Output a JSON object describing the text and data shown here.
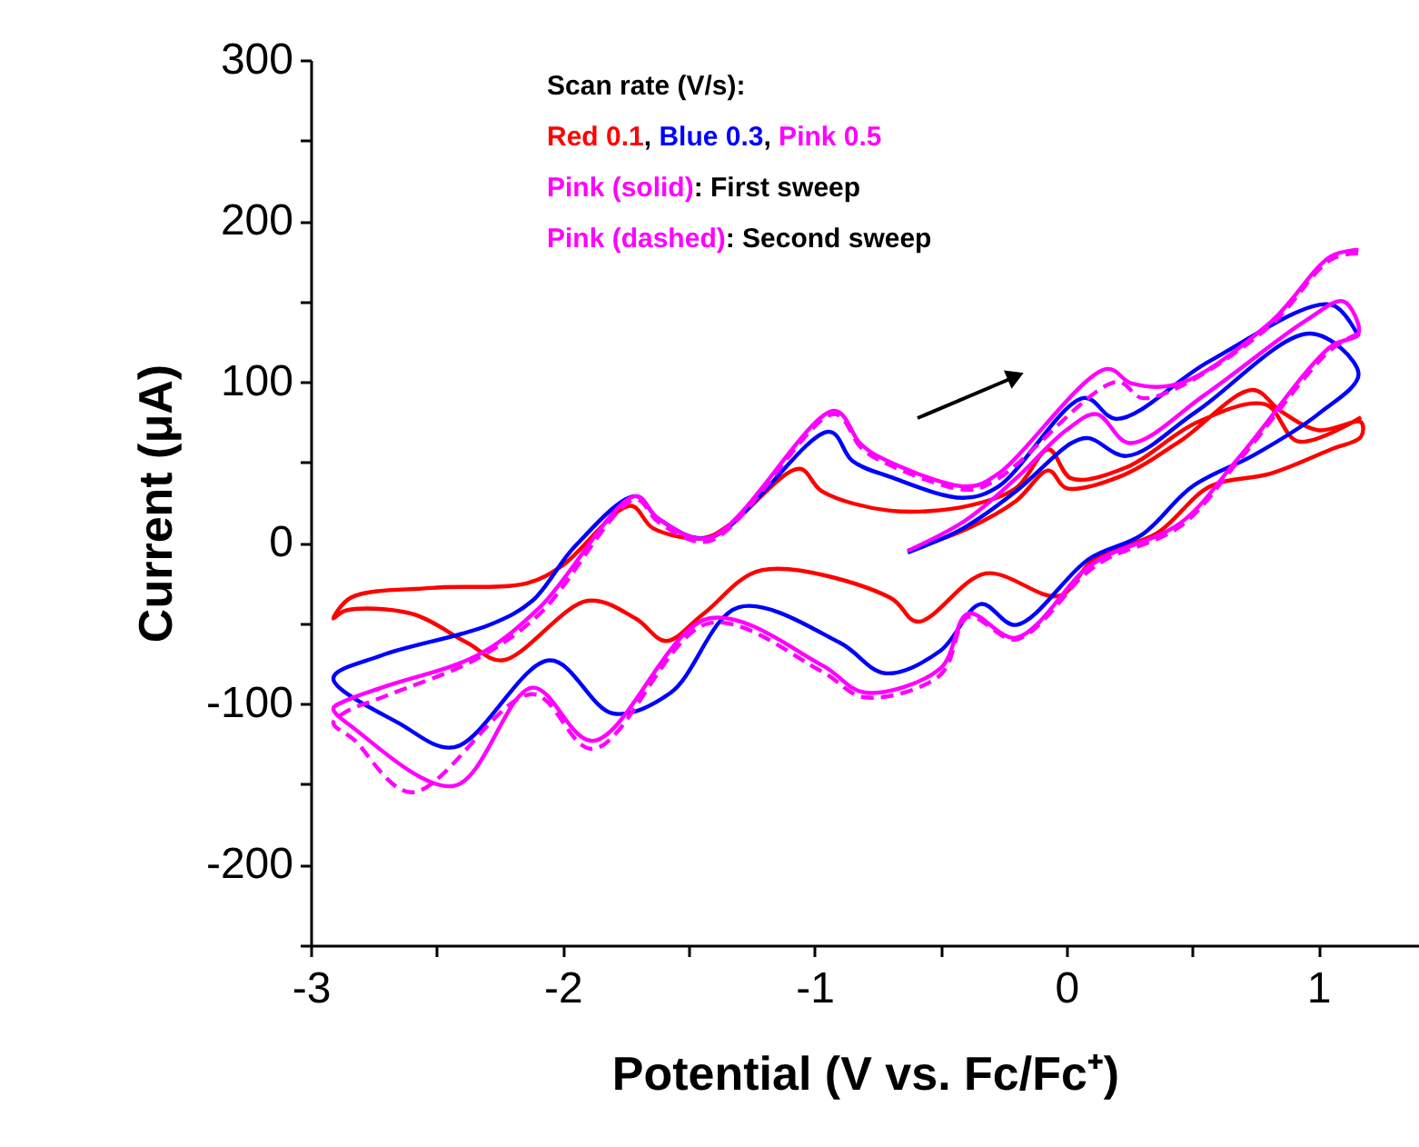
{
  "chart_data": {
    "type": "line",
    "xlabel": "Potential (V vs. Fc/Fc⁺)",
    "ylabel": "Current (μA)",
    "xlim": [
      -3,
      1.4
    ],
    "xticks": [
      -3,
      {
        "value": -2.5,
        "label": null
      },
      -2,
      {
        "value": -1.5,
        "label": null
      },
      -1,
      {
        "value": -0.5,
        "label": null
      },
      0,
      {
        "value": 0.5,
        "label": null
      },
      1
    ],
    "ylim": [
      -250,
      300
    ],
    "yticks": [
      {
        "value": -250,
        "label": null
      },
      -200,
      {
        "value": -150,
        "label": null
      },
      -100,
      {
        "value": -50,
        "label": null
      },
      0,
      {
        "value": 50,
        "label": null
      },
      100,
      {
        "value": 150,
        "label": null
      },
      200,
      {
        "value": 250,
        "label": null
      },
      300
    ],
    "grid": false,
    "line_style": "solid",
    "marker": "none",
    "annotations": [
      "Scan rate (V/s):",
      "Red 0.1, Blue 0.3, Pink 0.5",
      "Pink (solid): First sweep",
      "Pink (dashed): Second sweep"
    ],
    "series": [
      {
        "color": "#ff0000",
        "x": [
          -0.63,
          -0.39,
          -0.2,
          -0.07,
          0.0,
          0.21,
          0.45,
          0.74,
          0.85,
          1.0,
          1.17,
          1.17,
          1.05,
          0.81,
          0.57,
          0.36,
          0.11,
          -0.03,
          -0.32,
          -0.59,
          -0.7,
          -1.21,
          -1.44,
          -1.59,
          -1.71,
          -1.9,
          -2.24,
          -2.38,
          -2.6,
          -2.86,
          -2.91,
          -2.84,
          -2.52,
          -2.14,
          -2.0,
          -1.73,
          -1.64,
          -1.44,
          -1.33,
          -1.06,
          -0.97,
          -0.7,
          -0.39,
          -0.2,
          -0.07,
          0.02,
          0.24,
          0.52,
          0.79,
          0.92,
          1.17
        ],
        "values": [
          -5,
          9,
          26,
          45,
          34,
          41,
          63,
          95,
          82,
          70,
          75,
          66,
          58,
          43,
          35,
          6,
          -10,
          -33,
          -19,
          -49,
          -34,
          -17,
          -44,
          -61,
          -47,
          -36,
          -73,
          -62,
          -44,
          -42,
          -47,
          -34,
          -28,
          -25,
          -14,
          23,
          9,
          3,
          12,
          46,
          32,
          20,
          23,
          34,
          58,
          40,
          47,
          75,
          86,
          63,
          78
        ]
      },
      {
        "color": "#0000ff",
        "x": [
          -0.63,
          -0.41,
          -0.2,
          0.02,
          0.09,
          0.24,
          0.52,
          0.97,
          1.16,
          1.0,
          0.75,
          0.5,
          0.3,
          0.09,
          -0.2,
          -0.34,
          -0.5,
          -0.72,
          -0.9,
          -1.3,
          -1.57,
          -1.8,
          -2.05,
          -2.43,
          -2.65,
          -2.91,
          -2.72,
          -2.29,
          -2.12,
          -1.95,
          -1.71,
          -1.62,
          -1.42,
          -0.94,
          -0.85,
          -0.7,
          -0.41,
          -0.27,
          0.07,
          0.2,
          0.57,
          1.05,
          1.16
        ],
        "values": [
          -6,
          9,
          32,
          62,
          65,
          54,
          82,
          130,
          105,
          80,
          55,
          35,
          5,
          -10,
          -51,
          -38,
          -67,
          -81,
          -62,
          -40,
          -93,
          -106,
          -73,
          -127,
          -112,
          -84,
          -70,
          -51,
          -36,
          -2,
          29,
          15,
          3,
          69,
          51,
          41,
          28,
          35,
          90,
          77,
          113,
          148,
          128
        ]
      },
      {
        "color": "#ff00ff",
        "x": [
          -0.63,
          -0.4,
          -0.2,
          0.0,
          0.12,
          0.25,
          0.55,
          0.95,
          1.1,
          1.16,
          1.05,
          0.69,
          0.45,
          0.16,
          0.07,
          -0.2,
          -0.39,
          -0.5,
          -0.8,
          -0.97,
          -1.42,
          -1.88,
          -2.12,
          -2.43,
          -2.83,
          -2.91,
          -2.86,
          -2.7,
          -2.34,
          -2.09,
          -1.71,
          -1.62,
          -1.42,
          -0.92,
          -0.82,
          -0.75,
          -0.39,
          -0.27,
          0.16,
          0.26,
          0.45,
          0.81,
          1.05,
          1.16
        ],
        "values": [
          -5,
          14,
          40,
          70,
          80,
          62,
          92,
          138,
          150,
          130,
          122,
          54,
          12,
          -8,
          -17,
          -59,
          -44,
          -78,
          -93,
          -76,
          -47,
          -123,
          -90,
          -151,
          -115,
          -103,
          -98,
          -89,
          -70,
          -40,
          29,
          15,
          3,
          82,
          62,
          54,
          35,
          43,
          108,
          99,
          99,
          137,
          178,
          182
        ]
      },
      {
        "color": "#ff00ff",
        "line_style": "dashed",
        "x": [
          1.16,
          1.05,
          0.69,
          0.45,
          0.16,
          0.07,
          -0.2,
          -0.39,
          -0.5,
          -0.8,
          -0.97,
          -1.42,
          -1.88,
          -2.12,
          -2.6,
          -2.83,
          -2.91,
          -2.86,
          -2.7,
          -2.34,
          -2.09,
          -1.71,
          -1.62,
          -1.42,
          -0.92,
          -0.82,
          -0.75,
          -0.39,
          -0.27,
          0.2,
          0.3,
          0.45,
          0.81,
          1.05,
          1.16
        ],
        "values": [
          130,
          120,
          52,
          10,
          -10,
          -20,
          -60,
          -46,
          -82,
          -96,
          -80,
          -50,
          -128,
          -94,
          -155,
          -122,
          -112,
          -105,
          -95,
          -72,
          -44,
          27,
          13,
          1,
          80,
          60,
          52,
          33,
          40,
          100,
          90,
          97,
          135,
          176,
          180
        ]
      }
    ]
  }
}
